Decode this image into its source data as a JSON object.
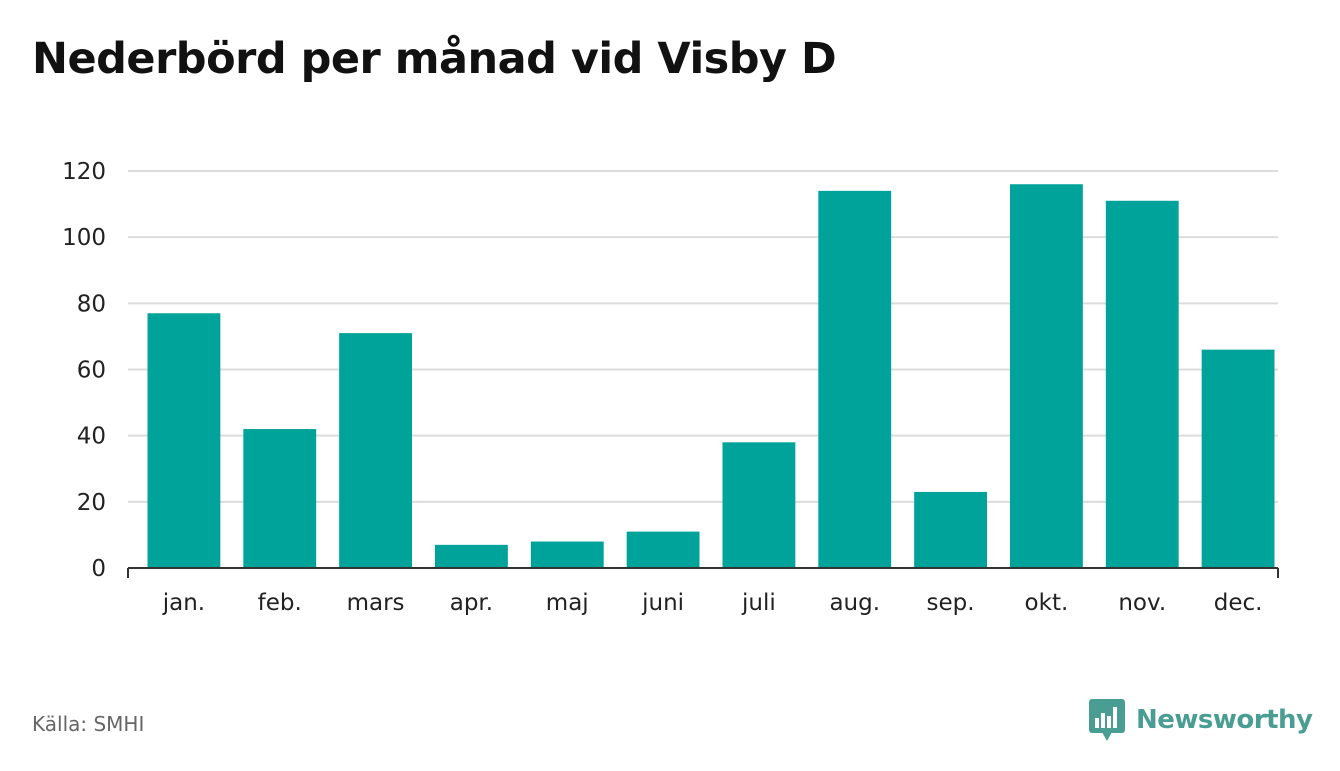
{
  "title": "Nederbörd per månad vid Visby D",
  "source": "Källa: SMHI",
  "brand": {
    "name": "Newsworthy",
    "color": "#4a9d93"
  },
  "colors": {
    "bar": "#00a39a",
    "grid": "#dcdcdc",
    "axis": "#333333"
  },
  "chart_data": {
    "type": "bar",
    "title": "Nederbörd per månad vid Visby D",
    "xlabel": "",
    "ylabel": "",
    "categories": [
      "jan.",
      "feb.",
      "mars",
      "apr.",
      "maj",
      "juni",
      "juli",
      "aug.",
      "sep.",
      "okt.",
      "nov.",
      "dec."
    ],
    "values": [
      77,
      42,
      71,
      7,
      8,
      11,
      38,
      114,
      23,
      116,
      111,
      66
    ],
    "ylim": [
      0,
      120
    ],
    "yticks": [
      0,
      20,
      40,
      60,
      80,
      100,
      120
    ],
    "grid": true,
    "legend": "none"
  }
}
